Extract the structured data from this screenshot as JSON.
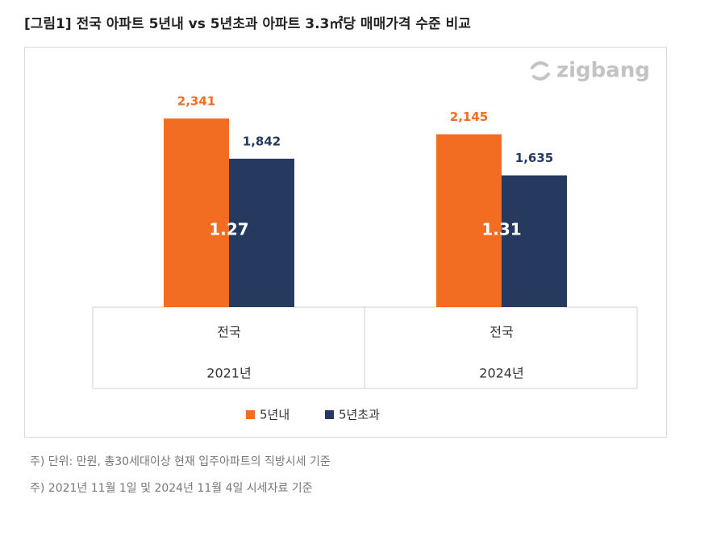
{
  "chart_data": {
    "type": "bar",
    "title": "[그림1] 전국 아파트 5년내 vs 5년초과 아파트 3.3㎡당 매매가격 수준 비교",
    "watermark": "zigbang",
    "categories": [
      "전국",
      "전국"
    ],
    "groups": [
      "2021년",
      "2024년"
    ],
    "series": [
      {
        "name": "5년내",
        "color": "#f26c21",
        "values": [
          2341,
          2145
        ],
        "value_labels": [
          "2,341",
          "2,145"
        ]
      },
      {
        "name": "5년초과",
        "color": "#253a5e",
        "values": [
          1842,
          1635
        ],
        "value_labels": [
          "1,842",
          "1,635"
        ]
      }
    ],
    "annotations": [
      "1.27",
      "1.31"
    ],
    "legend": "bottom",
    "notes": [
      "주) 단위: 만원, 총30세대이상 현재 입주아파트의 직방시세 기준",
      "주) 2021년 11월 1일 및 2024년 11월 4일 시세자료 기준"
    ]
  }
}
